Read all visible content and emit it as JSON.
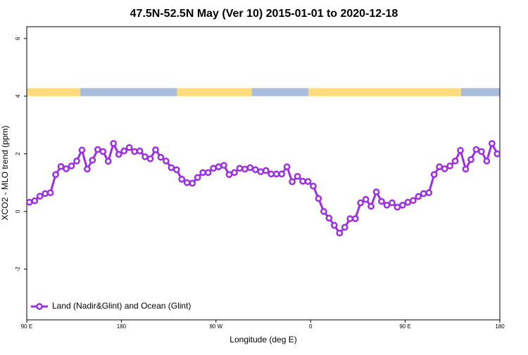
{
  "chart_data": {
    "type": "line",
    "title": "47.5N-52.5N May (Ver 10)   2015-01-01 to 2020-12-18",
    "xlabel": "Longitude (deg E)",
    "ylabel": "XCO2 - MLO trend (ppm)",
    "xlim": [
      90,
      540
    ],
    "ylim": [
      -3.76,
      6.41
    ],
    "xticks": [
      {
        "value": 90,
        "label": "90 E"
      },
      180,
      {
        "value": 270,
        "label": "90 W"
      },
      {
        "value": 360,
        "label": "0"
      },
      {
        "value": 450,
        "label": "90 E"
      },
      {
        "value": 540,
        "label": "180"
      }
    ],
    "yticks": [
      -2,
      0,
      2,
      4,
      6
    ],
    "legend": "bottom-left",
    "surface_band": {
      "ylim": [
        4,
        4.28
      ],
      "segments": [
        {
          "from": 90,
          "to": 141,
          "color": "#fedb7c"
        },
        {
          "from": 141,
          "to": 233,
          "color": "#a8bcdc"
        },
        {
          "from": 233,
          "to": 304,
          "color": "#fedb7c"
        },
        {
          "from": 304,
          "to": 358,
          "color": "#a8bcdc"
        },
        {
          "from": 358,
          "to": 503,
          "color": "#fedb7c"
        },
        {
          "from": 503,
          "to": 540,
          "color": "#a8bcdc"
        }
      ]
    },
    "x": [
      92.5,
      97.5,
      102.5,
      107.5,
      112.5,
      117.5,
      122.5,
      127.5,
      132.5,
      137.5,
      142.5,
      147.5,
      152.5,
      157.5,
      162.5,
      167.5,
      172.5,
      177.5,
      182.5,
      187.5,
      192.5,
      197.5,
      202.5,
      207.5,
      212.5,
      217.5,
      222.5,
      227.5,
      232.5,
      237.5,
      242.5,
      247.5,
      252.5,
      257.5,
      262.5,
      267.5,
      272.5,
      277.5,
      282.5,
      287.5,
      292.5,
      297.5,
      302.5,
      307.5,
      312.5,
      317.5,
      322.5,
      327.5,
      332.5,
      337.5,
      342.5,
      347.5,
      352.5,
      357.5,
      362.5,
      367.5,
      372.5,
      377.5,
      382.5,
      387.5,
      392.5,
      397.5,
      402.5,
      407.5,
      412.5,
      417.5,
      422.5,
      427.5,
      432.5,
      437.5,
      442.5,
      447.5,
      452.5,
      457.5,
      462.5,
      467.5,
      472.5,
      477.5,
      482.5,
      487.5,
      492.5,
      497.5,
      502.5,
      507.5,
      512.5,
      517.5,
      522.5,
      527.5,
      532.5,
      537.5
    ],
    "series": [
      {
        "name": "Land (Nadir&Glint) and Ocean (Glint)",
        "color": "#9b30e0",
        "values": [
          0.32,
          0.37,
          0.53,
          0.62,
          0.65,
          1.28,
          1.56,
          1.48,
          1.58,
          1.75,
          2.13,
          1.47,
          1.78,
          2.15,
          2.08,
          1.74,
          2.36,
          1.98,
          2.1,
          2.22,
          2.08,
          2.1,
          1.9,
          1.83,
          2.14,
          1.88,
          1.75,
          1.52,
          1.45,
          1.12,
          1.0,
          0.98,
          1.18,
          1.35,
          1.35,
          1.5,
          1.55,
          1.6,
          1.28,
          1.35,
          1.5,
          1.47,
          1.52,
          1.45,
          1.38,
          1.42,
          1.3,
          1.3,
          1.3,
          1.55,
          1.03,
          1.22,
          1.05,
          1.04,
          0.88,
          0.45,
          0,
          -0.23,
          -0.48,
          -0.75,
          -0.55,
          -0.25,
          -0.25,
          0.3,
          0.42,
          0.18,
          0.68,
          0.35,
          0.22,
          0.3,
          0.15,
          0.22,
          0.32,
          0.38,
          0.52,
          0.62,
          0.65,
          1.28,
          1.55,
          1.48,
          1.58,
          1.75,
          2.12,
          1.47,
          1.8,
          2.15,
          2.08,
          1.75,
          2.36,
          2.0
        ]
      }
    ]
  }
}
